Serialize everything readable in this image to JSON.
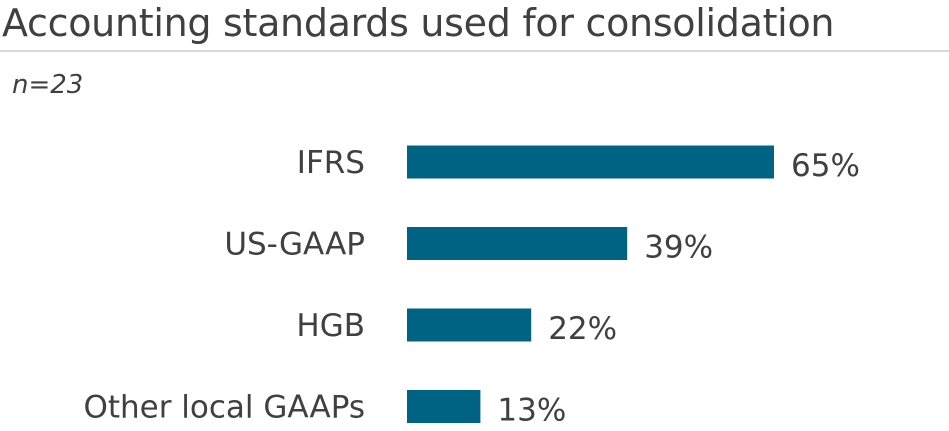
{
  "chart_data": {
    "type": "bar",
    "orientation": "horizontal",
    "title": "Accounting standards used for consolidation",
    "subtitle": "n=23",
    "categories": [
      "IFRS",
      "US-GAAP",
      "HGB",
      "Other local GAAPs"
    ],
    "values": [
      65,
      39,
      22,
      13
    ],
    "value_labels": [
      "65%",
      "39%",
      "22%",
      "13%"
    ],
    "unit": "%",
    "xlim": [
      0,
      100
    ],
    "grid": false,
    "legend": "none",
    "bar_color": "#006384"
  }
}
